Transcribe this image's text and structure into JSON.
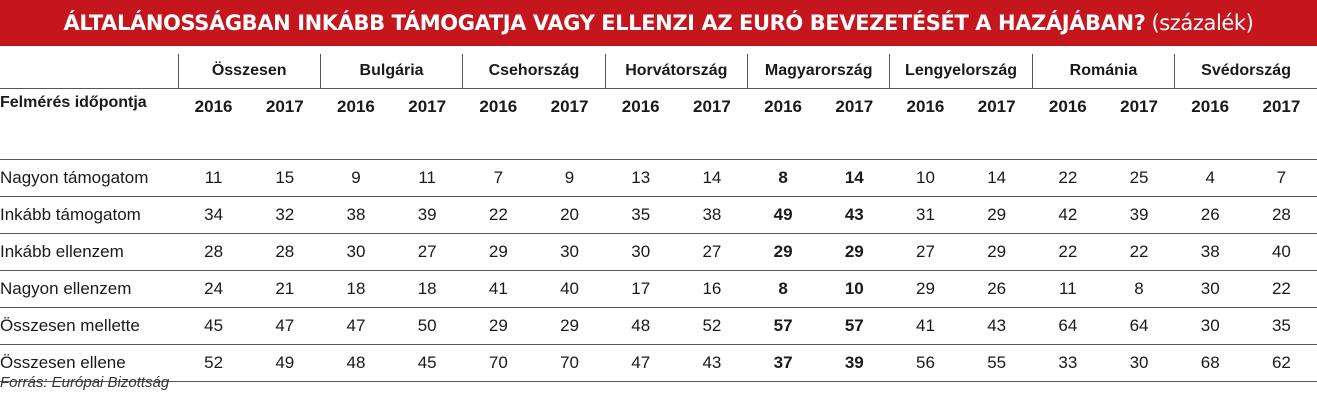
{
  "title": {
    "main": "ÁLTALÁNOSSÁGBAN INKÁBB TÁMOGATJA VAGY ELLENZI AZ EURÓ BEVEZETÉSÉT A HAZÁJÁBAN?",
    "unit": "(százalék)"
  },
  "row_header": "Felmérés időpontja",
  "source": "Forrás: Európai Bizottság",
  "accent_color": "#c4161c",
  "highlighted_country": "Magyarország",
  "chart_data": {
    "type": "table",
    "title": "ÁLTALÁNOSSÁGBAN INKÁBB TÁMOGATJA VAGY ELLENZI AZ EURÓ BEVEZETÉSÉT A HAZÁJÁBAN? (százalék)",
    "countries": [
      "Összesen",
      "Bulgária",
      "Csehország",
      "Horvátország",
      "Magyarország",
      "Lengyelország",
      "Románia",
      "Svédország"
    ],
    "years": [
      "2016",
      "2017"
    ],
    "rows": [
      {
        "label": "Nagyon támogatom",
        "values": [
          [
            11,
            15
          ],
          [
            9,
            11
          ],
          [
            7,
            9
          ],
          [
            13,
            14
          ],
          [
            8,
            14
          ],
          [
            10,
            14
          ],
          [
            22,
            25
          ],
          [
            4,
            7
          ]
        ]
      },
      {
        "label": "Inkább támogatom",
        "values": [
          [
            34,
            32
          ],
          [
            38,
            39
          ],
          [
            22,
            20
          ],
          [
            35,
            38
          ],
          [
            49,
            43
          ],
          [
            31,
            29
          ],
          [
            42,
            39
          ],
          [
            26,
            28
          ]
        ]
      },
      {
        "label": "Inkább ellenzem",
        "values": [
          [
            28,
            28
          ],
          [
            30,
            27
          ],
          [
            29,
            30
          ],
          [
            30,
            27
          ],
          [
            29,
            29
          ],
          [
            27,
            29
          ],
          [
            22,
            22
          ],
          [
            38,
            40
          ]
        ]
      },
      {
        "label": "Nagyon ellenzem",
        "values": [
          [
            24,
            21
          ],
          [
            18,
            18
          ],
          [
            41,
            40
          ],
          [
            17,
            16
          ],
          [
            8,
            10
          ],
          [
            29,
            26
          ],
          [
            11,
            8
          ],
          [
            30,
            22
          ]
        ]
      },
      {
        "label": "Összesen mellette",
        "values": [
          [
            45,
            47
          ],
          [
            47,
            50
          ],
          [
            29,
            29
          ],
          [
            48,
            52
          ],
          [
            57,
            57
          ],
          [
            41,
            43
          ],
          [
            64,
            64
          ],
          [
            30,
            35
          ]
        ]
      },
      {
        "label": "Összesen ellene",
        "values": [
          [
            52,
            49
          ],
          [
            48,
            45
          ],
          [
            70,
            70
          ],
          [
            47,
            43
          ],
          [
            37,
            39
          ],
          [
            56,
            55
          ],
          [
            33,
            30
          ],
          [
            68,
            62
          ]
        ]
      }
    ]
  }
}
